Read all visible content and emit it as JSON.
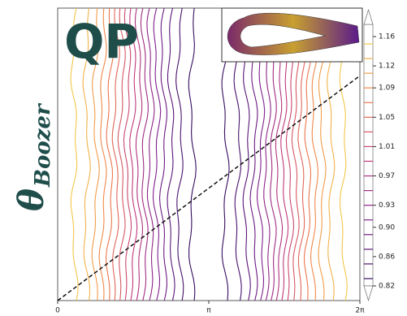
{
  "chart_data": {
    "type": "contour",
    "logo": "QP",
    "ylabel": "θ",
    "ylabel_sub": "Boozer",
    "xlim": [
      0,
      6.28319
    ],
    "ylim": [
      0,
      6.28319
    ],
    "xticks": [
      0,
      {
        "value": 3.14159,
        "label": "π"
      },
      {
        "value": 6.28319,
        "label": "2π"
      }
    ],
    "clim": [
      0.82,
      1.16
    ],
    "cticks": [
      0.82,
      0.86,
      {
        "value": 0.9,
        "label": "0.90"
      },
      0.93,
      0.97,
      1.01,
      1.05,
      1.09,
      1.12,
      1.16
    ],
    "levels": [
      0.83,
      0.85,
      0.87,
      0.89,
      0.91,
      0.93,
      0.95,
      0.97,
      0.99,
      1.01,
      1.03,
      1.05,
      1.07,
      1.09,
      1.11,
      1.13,
      1.15
    ],
    "colormap": [
      "#2d0b5a",
      "#7a1e8c",
      "#c0397a",
      "#ef7a4a",
      "#f3d04a"
    ],
    "field_line": {
      "x": [
        0,
        6.28319
      ],
      "y": [
        0,
        4.83
      ],
      "color": "#111"
    }
  }
}
